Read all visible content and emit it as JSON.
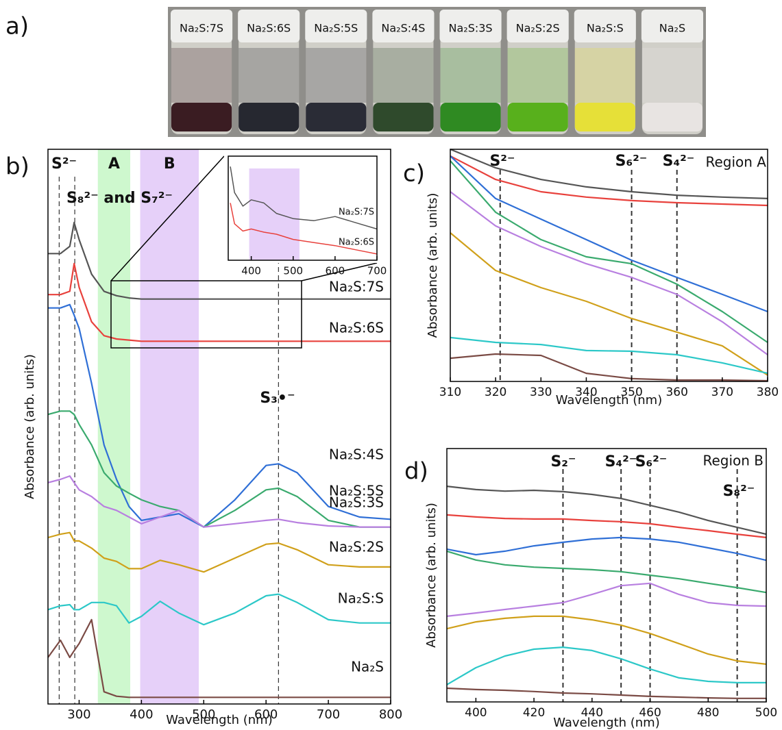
{
  "chart_data": [
    {
      "type": "photo",
      "label": "a)",
      "categories": [
        "Na₂S:7S",
        "Na₂S:6S",
        "Na₂S:5S",
        "Na₂S:4S",
        "Na₂S:3S",
        "Na₂S:2S",
        "Na₂S:S",
        "Na₂S"
      ],
      "colors": [
        "#3a1c22",
        "#262830",
        "#2a2c36",
        "#2f4a2c",
        "#2f8a22",
        "#58b01c",
        "#e6e038",
        "#e8e4e2"
      ]
    },
    {
      "type": "line",
      "label": "b)",
      "xlabel": "Wavelength (nm)",
      "ylabel": "Absorbance (arb. units)",
      "xlim": [
        250,
        800
      ],
      "ylim": [
        0,
        100
      ],
      "xticks": [
        300,
        400,
        500,
        600,
        700,
        800
      ],
      "x": [
        250,
        270,
        285,
        292,
        300,
        320,
        340,
        360,
        380,
        400,
        430,
        460,
        500,
        550,
        600,
        620,
        650,
        700,
        750,
        800
      ],
      "regions": [
        {
          "name": "A",
          "range": [
            330,
            382
          ],
          "color": "#c9f7c9"
        },
        {
          "name": "B",
          "range": [
            398,
            492
          ],
          "color": "#e3cbf8"
        }
      ],
      "vlines": [
        {
          "value": 268,
          "label": "S²⁻"
        },
        {
          "value": 293,
          "label": "S₈²⁻ and S₇²⁻"
        },
        {
          "value": 620,
          "label": "S₃•⁻"
        }
      ],
      "series": [
        {
          "name": "Na₂S:7S",
          "color": "#555555",
          "values": [
            81.2,
            81.2,
            82.5,
            86.8,
            83.7,
            77.5,
            74.4,
            73.6,
            73.2,
            73.0,
            73.0,
            73.0,
            73.0,
            73.0,
            73.0,
            73.0,
            73.0,
            73.0,
            73.0,
            73.0
          ]
        },
        {
          "name": "Na₂S:6S",
          "color": "#e8413c",
          "values": [
            73.8,
            73.8,
            74.4,
            79.4,
            75.1,
            68.9,
            66.4,
            65.8,
            65.6,
            65.4,
            65.4,
            65.4,
            65.4,
            65.4,
            65.4,
            65.4,
            65.4,
            65.4,
            65.4,
            65.4
          ]
        },
        {
          "name": "Na₂S:5S",
          "color": "#2f6fd6",
          "values": [
            71.4,
            71.4,
            72.0,
            70.1,
            67.7,
            57.8,
            46.7,
            40.5,
            35.6,
            33.1,
            33.7,
            34.3,
            31.9,
            36.8,
            43.0,
            43.3,
            41.7,
            35.6,
            33.7,
            33.3
          ]
        },
        {
          "name": "Na₂S:4S",
          "color": "#3aaa6e",
          "values": [
            52.2,
            52.8,
            52.8,
            52.2,
            50.4,
            46.7,
            41.7,
            39.3,
            38.0,
            36.8,
            35.6,
            34.9,
            31.9,
            34.9,
            38.6,
            38.9,
            37.4,
            33.1,
            31.9,
            31.9
          ]
        },
        {
          "name": "Na₂S:3S",
          "color": "#b87fe0",
          "values": [
            39.9,
            40.5,
            41.1,
            39.9,
            38.6,
            37.4,
            35.6,
            34.9,
            33.7,
            32.5,
            33.7,
            34.9,
            31.9,
            32.5,
            33.1,
            33.3,
            32.7,
            32.1,
            31.9,
            31.9
          ]
        },
        {
          "name": "Na₂S:2S",
          "color": "#d0a01a",
          "values": [
            30.0,
            30.6,
            30.9,
            29.4,
            29.4,
            28.1,
            26.3,
            25.7,
            24.4,
            24.4,
            25.9,
            25.1,
            23.8,
            26.3,
            28.8,
            29.0,
            27.8,
            25.1,
            24.7,
            24.7
          ]
        },
        {
          "name": "Na₂S:S",
          "color": "#2cc8c8",
          "values": [
            17.0,
            17.7,
            17.9,
            17.0,
            17.0,
            18.3,
            18.3,
            17.7,
            14.6,
            15.8,
            18.5,
            16.4,
            14.3,
            16.4,
            19.5,
            19.8,
            18.3,
            15.2,
            14.6,
            14.6
          ]
        },
        {
          "name": "Na₂S",
          "color": "#7a4a44",
          "values": [
            8.4,
            11.5,
            8.4,
            9.6,
            10.9,
            15.2,
            2.2,
            1.4,
            1.2,
            1.2,
            1.2,
            1.2,
            1.2,
            1.2,
            1.2,
            1.2,
            1.2,
            1.2,
            1.2,
            1.2
          ]
        }
      ]
    },
    {
      "type": "line",
      "xlim": [
        345,
        700
      ],
      "ylim": [
        0,
        100
      ],
      "xticks": [
        400,
        500,
        600,
        700
      ],
      "x": [
        350,
        360,
        380,
        400,
        430,
        460,
        500,
        550,
        600,
        650,
        700
      ],
      "regions": [
        {
          "range": [
            395,
            515
          ],
          "color": "#e3cbf8"
        }
      ],
      "series": [
        {
          "name": "Na₂S:7S",
          "color": "#555555",
          "values": [
            90,
            65,
            52,
            58,
            55,
            45,
            40,
            38,
            42,
            36,
            30
          ]
        },
        {
          "name": "Na₂S:6S",
          "color": "#e8413c",
          "values": [
            55,
            35,
            28,
            30,
            27,
            25,
            20,
            17,
            14,
            10,
            6
          ]
        }
      ]
    },
    {
      "type": "line",
      "label": "c)",
      "xlabel": "Wavelength (nm)",
      "ylabel": "Absorbance (arb. units)",
      "annotation": "Region A",
      "xlim": [
        310,
        380
      ],
      "ylim": [
        0,
        100
      ],
      "xticks": [
        310,
        320,
        330,
        340,
        350,
        360,
        370,
        380
      ],
      "x": [
        310,
        320,
        330,
        340,
        350,
        360,
        370,
        380
      ],
      "vlines": [
        {
          "value": 321,
          "label": "S²⁻"
        },
        {
          "value": 350,
          "label": "S₆²⁻"
        },
        {
          "value": 360,
          "label": "S₄²⁻"
        }
      ],
      "series": [
        {
          "color": "#555555",
          "values": [
            100,
            92.0,
            87.0,
            83.8,
            81.7,
            80.2,
            79.4,
            78.8
          ]
        },
        {
          "color": "#e8413c",
          "values": [
            97.1,
            87.0,
            81.7,
            79.4,
            77.9,
            77.0,
            76.4,
            75.8
          ]
        },
        {
          "color": "#2f6fd6",
          "values": [
            97.1,
            78.8,
            69.9,
            61.1,
            52.2,
            44.8,
            37.5,
            30.1
          ]
        },
        {
          "color": "#3aaa6e",
          "values": [
            95.0,
            72.9,
            61.1,
            53.7,
            50.7,
            41.9,
            30.1,
            16.8
          ]
        },
        {
          "color": "#b87fe0",
          "values": [
            81.7,
            67.0,
            58.1,
            50.7,
            44.8,
            37.5,
            25.7,
            11.5
          ]
        },
        {
          "color": "#d0a01a",
          "values": [
            64.0,
            47.8,
            40.4,
            34.5,
            27.1,
            21.2,
            15.3,
            2.7
          ]
        },
        {
          "color": "#2cc8c8",
          "values": [
            18.9,
            16.8,
            15.9,
            13.3,
            13.0,
            11.5,
            8.0,
            3.5
          ]
        },
        {
          "color": "#7a4a44",
          "values": [
            10.0,
            11.8,
            11.2,
            3.5,
            1.2,
            0.6,
            0.6,
            0.3
          ]
        }
      ]
    },
    {
      "type": "line",
      "label": "d)",
      "xlabel": "Wavelength (nm)",
      "ylabel": "Absorbance (arb. units)",
      "annotation": "Region B",
      "xlim": [
        390,
        500
      ],
      "ylim": [
        0,
        100
      ],
      "xticks": [
        400,
        420,
        440,
        460,
        480,
        500
      ],
      "x": [
        390,
        400,
        410,
        420,
        430,
        440,
        450,
        460,
        470,
        480,
        490,
        500
      ],
      "vlines": [
        {
          "value": 430,
          "label": "S₂⁻"
        },
        {
          "value": 450,
          "label": "S₄²⁻"
        },
        {
          "value": 460,
          "label": "S₆²⁻"
        },
        {
          "value": 490,
          "label": "S₈²⁻"
        }
      ],
      "series": [
        {
          "color": "#555555",
          "values": [
            85.1,
            83.8,
            83.2,
            83.5,
            83.0,
            81.9,
            80.3,
            77.6,
            74.9,
            71.6,
            68.9,
            66.2
          ]
        },
        {
          "color": "#e8413c",
          "values": [
            73.8,
            73.0,
            72.4,
            72.2,
            72.2,
            71.6,
            71.1,
            70.3,
            68.9,
            67.6,
            66.2,
            64.9
          ]
        },
        {
          "color": "#2f6fd6",
          "values": [
            60.3,
            58.1,
            59.5,
            61.6,
            63.0,
            64.3,
            64.9,
            64.3,
            63.0,
            60.8,
            58.6,
            55.9
          ]
        },
        {
          "color": "#3aaa6e",
          "values": [
            59.5,
            56.0,
            54.1,
            53.2,
            52.7,
            52.2,
            51.4,
            50.0,
            48.6,
            46.8,
            45.1,
            43.2
          ]
        },
        {
          "color": "#b87fe0",
          "values": [
            33.8,
            35.1,
            36.5,
            37.8,
            39.2,
            42.4,
            45.9,
            46.8,
            42.4,
            39.2,
            38.1,
            37.8
          ]
        },
        {
          "color": "#d0a01a",
          "values": [
            28.9,
            31.6,
            33.0,
            33.8,
            33.8,
            32.4,
            30.3,
            27.0,
            23.0,
            18.9,
            16.2,
            14.9
          ]
        },
        {
          "color": "#2cc8c8",
          "values": [
            6.8,
            13.5,
            18.1,
            20.8,
            21.6,
            20.3,
            17.0,
            13.0,
            9.5,
            8.1,
            7.6,
            7.6
          ]
        },
        {
          "color": "#7a4a44",
          "values": [
            5.4,
            4.9,
            4.6,
            4.1,
            3.5,
            3.2,
            2.7,
            2.2,
            1.9,
            1.6,
            1.4,
            1.4
          ]
        }
      ]
    }
  ]
}
